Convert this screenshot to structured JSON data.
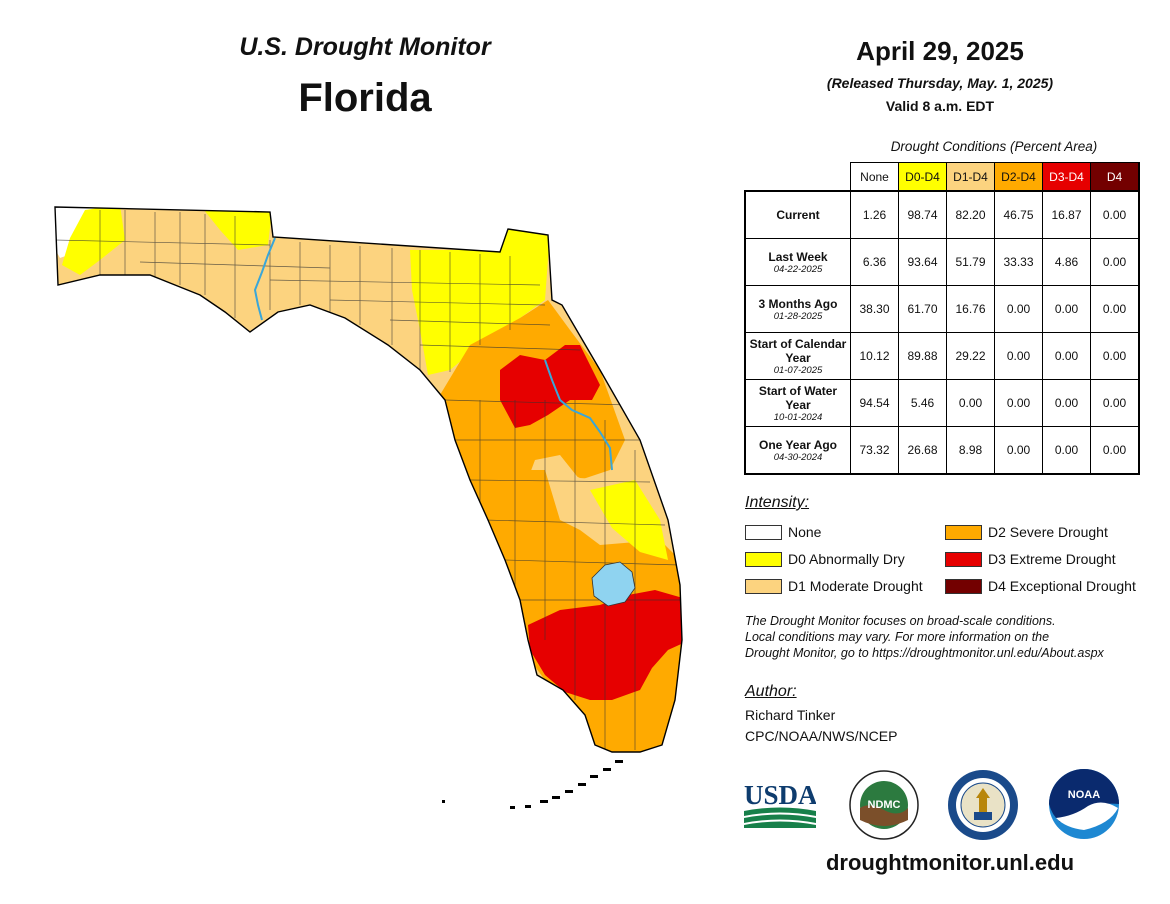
{
  "header": {
    "title": "U.S. Drought Monitor",
    "state": "Florida",
    "date": "April 29, 2025",
    "released": "(Released Thursday, May. 1, 2025)",
    "valid": "Valid 8 a.m. EDT"
  },
  "table": {
    "caption": "Drought Conditions (Percent Area)",
    "columns": [
      "None",
      "D0-D4",
      "D1-D4",
      "D2-D4",
      "D3-D4",
      "D4"
    ],
    "column_colors": [
      "#ffffff",
      "#ffff00",
      "#fcd37f",
      "#ffaa00",
      "#e60000",
      "#730000"
    ],
    "rows": [
      {
        "label": "Current",
        "date": "",
        "values": [
          "1.26",
          "98.74",
          "82.20",
          "46.75",
          "16.87",
          "0.00"
        ]
      },
      {
        "label": "Last Week",
        "date": "04-22-2025",
        "values": [
          "6.36",
          "93.64",
          "51.79",
          "33.33",
          "4.86",
          "0.00"
        ]
      },
      {
        "label": "3 Months Ago",
        "date": "01-28-2025",
        "values": [
          "38.30",
          "61.70",
          "16.76",
          "0.00",
          "0.00",
          "0.00"
        ]
      },
      {
        "label": "Start of Calendar Year",
        "date": "01-07-2025",
        "values": [
          "10.12",
          "89.88",
          "29.22",
          "0.00",
          "0.00",
          "0.00"
        ]
      },
      {
        "label": "Start of Water Year",
        "date": "10-01-2024",
        "values": [
          "94.54",
          "5.46",
          "0.00",
          "0.00",
          "0.00",
          "0.00"
        ]
      },
      {
        "label": "One Year Ago",
        "date": "04-30-2024",
        "values": [
          "73.32",
          "26.68",
          "8.98",
          "0.00",
          "0.00",
          "0.00"
        ]
      }
    ]
  },
  "legend": {
    "title": "Intensity:",
    "items": [
      {
        "label": "None",
        "color": "#ffffff"
      },
      {
        "label": "D0 Abnormally Dry",
        "color": "#ffff00"
      },
      {
        "label": "D1 Moderate Drought",
        "color": "#fcd37f"
      },
      {
        "label": "D2 Severe Drought",
        "color": "#ffaa00"
      },
      {
        "label": "D3 Extreme Drought",
        "color": "#e60000"
      },
      {
        "label": "D4 Exceptional Drought",
        "color": "#730000"
      }
    ]
  },
  "note": {
    "line1": "The Drought Monitor focuses on broad-scale conditions.",
    "line2": "Local conditions may vary. For more information on the",
    "line3": "Drought Monitor, go to https://droughtmonitor.unl.edu/About.aspx"
  },
  "author": {
    "title": "Author:",
    "name": "Richard Tinker",
    "org": "CPC/NOAA/NWS/NCEP"
  },
  "logos": {
    "usda": "USDA",
    "ndmc": "NDMC",
    "noaa": "NOAA"
  },
  "website": "droughtmonitor.unl.edu",
  "map_colors": {
    "none": "#ffffff",
    "d0": "#ffff00",
    "d1": "#fcd37f",
    "d2": "#ffaa00",
    "d3": "#e60000",
    "water": "#8fd3f0",
    "river": "#3aa6d8"
  }
}
